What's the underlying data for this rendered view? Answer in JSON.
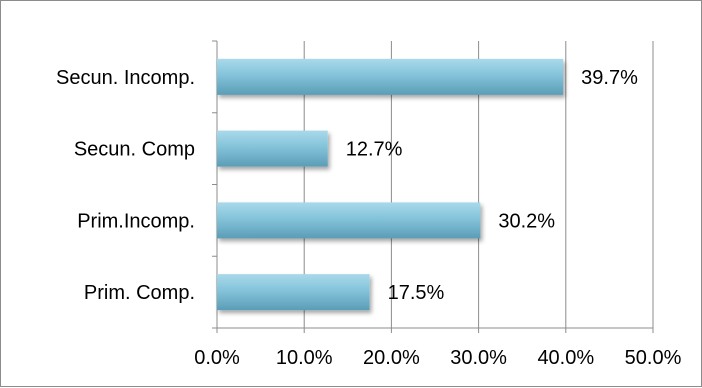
{
  "chart_data": {
    "type": "bar",
    "orientation": "horizontal",
    "categories": [
      "Secun. Incomp.",
      "Secun. Comp",
      "Prim.Incomp.",
      "Prim. Comp."
    ],
    "values": [
      39.7,
      12.7,
      30.2,
      17.5
    ],
    "value_labels": [
      "39.7%",
      "12.7%",
      "30.2%",
      "17.5%"
    ],
    "title": "",
    "xlabel": "",
    "ylabel": "",
    "xlim": [
      0,
      50
    ],
    "xticks": [
      0,
      10,
      20,
      30,
      40,
      50
    ],
    "xtick_labels": [
      "0.0%",
      "10.0%",
      "20.0%",
      "30.0%",
      "40.0%",
      "50.0%"
    ],
    "grid": "vertical major gridlines",
    "legend": "none",
    "bar_color": "#7fbfd6",
    "bar_shadow_color": "#4f8aa1",
    "gridline_color": "#8c8c8c"
  }
}
